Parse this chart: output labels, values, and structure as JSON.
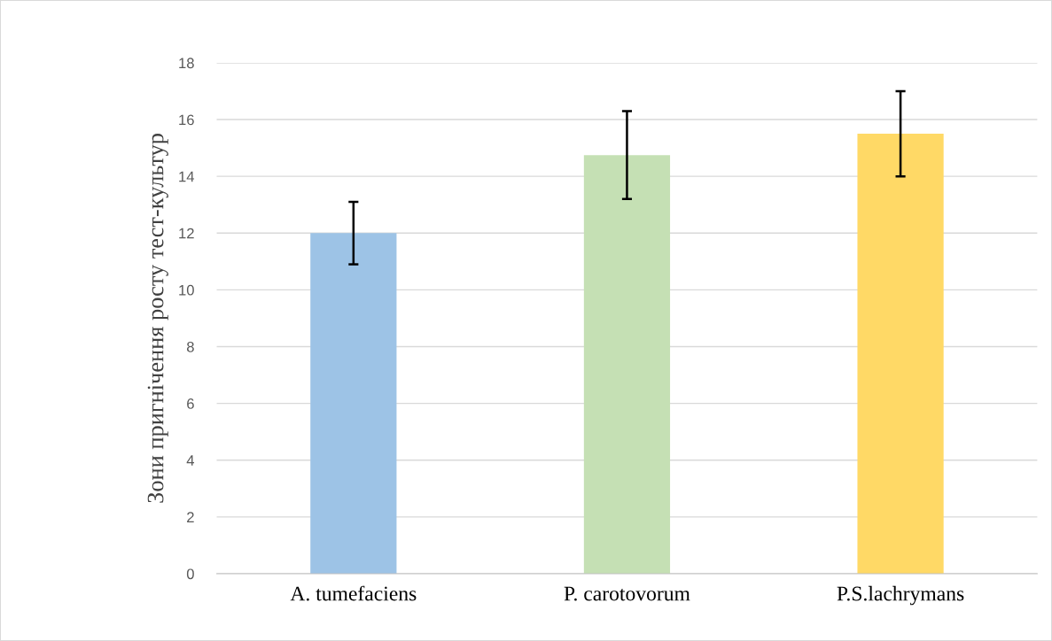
{
  "chart_data": {
    "type": "bar",
    "ylabel": "Зони пригнічення росту тест-культур",
    "categories": [
      "A. tumefaciens",
      "P. carotovorum",
      "P.S.lachrymans"
    ],
    "values": [
      12,
      14.75,
      15.5
    ],
    "errors": [
      1.1,
      1.55,
      1.5
    ],
    "colors": [
      "#9dc3e6",
      "#c5e0b4",
      "#ffd966"
    ],
    "ylim": [
      0,
      18
    ],
    "yticks": [
      0,
      2,
      4,
      6,
      8,
      10,
      12,
      14,
      16,
      18
    ],
    "grid": "y"
  }
}
